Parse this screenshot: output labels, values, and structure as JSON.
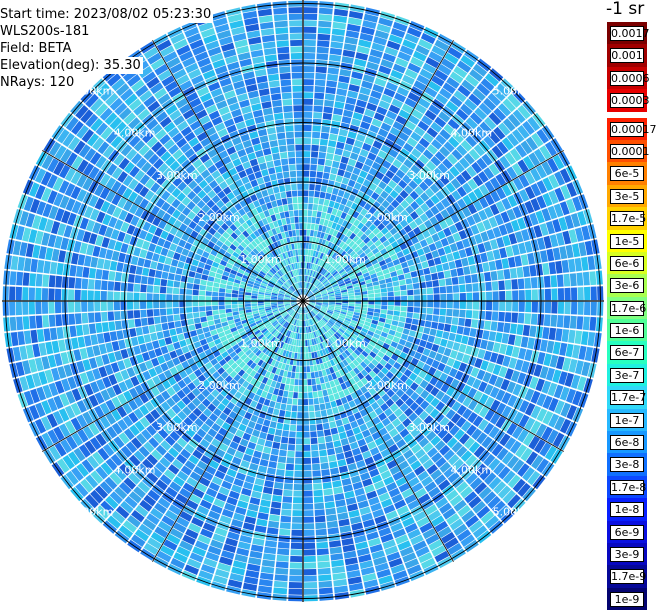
{
  "info": {
    "start_time": "Start time: 2023/08/02 05:23:30",
    "instrument": "WLS200s-181",
    "field": "Field: BETA",
    "elevation": "Elevation(deg): 35.30",
    "nrays": "NRays: 120"
  },
  "colorbar": {
    "unit_label": "-1 sr",
    "upper_labels": [
      "0.0017",
      "0.001",
      "0.0006",
      "0.0003"
    ],
    "upper_colors": [
      "#7a0000",
      "#a00000",
      "#c80000",
      "#e80000"
    ],
    "lower_labels": [
      "0.00017",
      "0.0001",
      "6e-5",
      "3e-5",
      "1.7e-5",
      "1e-5",
      "6e-6",
      "3e-6",
      "1.7e-6",
      "1e-6",
      "6e-7",
      "3e-7",
      "1.7e-7",
      "1e-7",
      "6e-8",
      "3e-8",
      "1.7e-8",
      "1e-8",
      "6e-9",
      "3e-9",
      "1.7e-9",
      "1e-9"
    ],
    "lower_colors": [
      "#ff2000",
      "#ff5000",
      "#ff8000",
      "#ffa800",
      "#ffd000",
      "#ffff00",
      "#d8ff20",
      "#a8ff50",
      "#80ff80",
      "#50ff98",
      "#28ffc0",
      "#20f0e0",
      "#30d8f8",
      "#28b8ff",
      "#1898ff",
      "#1070ff",
      "#0c48ff",
      "#0820ff",
      "#0a10e0",
      "#0808c0",
      "#060898",
      "#040470"
    ]
  },
  "ppi": {
    "range_labels": [
      "1.00km",
      "2.00km",
      "3.00km",
      "4.00km",
      "5.00km"
    ],
    "rays": 120,
    "ring_count": 5,
    "colors": [
      "#1f6fe8",
      "#2a86f0",
      "#37a0f5",
      "#2f92ee",
      "#3cb4f2",
      "#4ec9ee",
      "#1b5fd8",
      "#56d8e8",
      "#3aa6ea",
      "#28c0f0"
    ]
  }
}
